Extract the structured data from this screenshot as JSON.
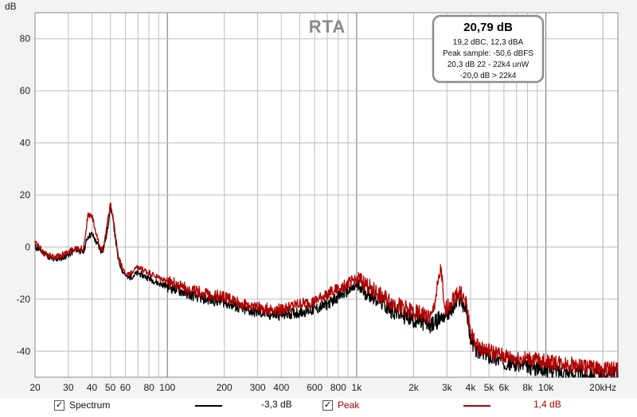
{
  "chart_data": {
    "type": "line",
    "title": "RTA",
    "y_unit": "dB",
    "xscale": "log",
    "xlim": [
      20,
      24000
    ],
    "ylim": [
      -50,
      90
    ],
    "x_ticks": [
      20,
      30,
      40,
      50,
      60,
      80,
      100,
      200,
      300,
      400,
      600,
      800,
      1000,
      2000,
      3000,
      4000,
      5000,
      6000,
      8000,
      10000,
      20000
    ],
    "x_tick_labels": [
      "20",
      "30",
      "40",
      "50",
      "60",
      "80",
      "100",
      "200",
      "300",
      "400",
      "600",
      "800",
      "1k",
      "2k",
      "3k",
      "4k",
      "5k",
      "6k",
      "8k",
      "10k",
      "20kHz"
    ],
    "y_ticks": [
      80,
      60,
      40,
      20,
      0,
      -20,
      -40
    ],
    "y_tick_labels": [
      "80",
      "60",
      "40",
      "20",
      "0",
      "-20",
      "-40"
    ],
    "grid": true,
    "series": [
      {
        "name": "Spectrum",
        "color": "#000000",
        "level": "-3,3 dB",
        "points": [
          [
            20,
            0
          ],
          [
            22,
            -2
          ],
          [
            25,
            -5
          ],
          [
            28,
            -4
          ],
          [
            30,
            -3
          ],
          [
            33,
            -1
          ],
          [
            36,
            -2
          ],
          [
            38,
            4
          ],
          [
            40,
            5
          ],
          [
            42,
            2
          ],
          [
            45,
            -2
          ],
          [
            48,
            5
          ],
          [
            50,
            16
          ],
          [
            52,
            9
          ],
          [
            55,
            -5
          ],
          [
            58,
            -9
          ],
          [
            62,
            -12
          ],
          [
            70,
            -10
          ],
          [
            80,
            -12
          ],
          [
            90,
            -14
          ],
          [
            100,
            -15
          ],
          [
            130,
            -18
          ],
          [
            160,
            -20
          ],
          [
            200,
            -21
          ],
          [
            250,
            -24
          ],
          [
            300,
            -25
          ],
          [
            350,
            -26
          ],
          [
            400,
            -26
          ],
          [
            500,
            -25
          ],
          [
            600,
            -24
          ],
          [
            700,
            -22
          ],
          [
            800,
            -19
          ],
          [
            900,
            -17
          ],
          [
            1000,
            -15
          ],
          [
            1100,
            -17
          ],
          [
            1300,
            -20
          ],
          [
            1500,
            -24
          ],
          [
            2000,
            -28
          ],
          [
            2500,
            -30
          ],
          [
            2800,
            -27
          ],
          [
            3200,
            -24
          ],
          [
            3500,
            -20
          ],
          [
            3800,
            -24
          ],
          [
            4000,
            -35
          ],
          [
            4300,
            -40
          ],
          [
            5000,
            -42
          ],
          [
            6000,
            -44
          ],
          [
            7000,
            -45
          ],
          [
            8000,
            -46
          ],
          [
            10000,
            -47
          ],
          [
            13000,
            -48
          ],
          [
            16000,
            -49
          ],
          [
            20000,
            -49
          ],
          [
            24000,
            -49
          ]
        ]
      },
      {
        "name": "Peak",
        "color": "#b00000",
        "level": "1,4 dB",
        "points": [
          [
            20,
            2
          ],
          [
            22,
            -2
          ],
          [
            25,
            -4
          ],
          [
            28,
            -3
          ],
          [
            30,
            -2
          ],
          [
            33,
            0
          ],
          [
            36,
            -1
          ],
          [
            38,
            12
          ],
          [
            40,
            12
          ],
          [
            42,
            5
          ],
          [
            44,
            0
          ],
          [
            46,
            -1
          ],
          [
            48,
            8
          ],
          [
            50,
            17
          ],
          [
            52,
            10
          ],
          [
            55,
            -4
          ],
          [
            58,
            -8
          ],
          [
            62,
            -11
          ],
          [
            70,
            -8
          ],
          [
            80,
            -10
          ],
          [
            90,
            -12
          ],
          [
            100,
            -13
          ],
          [
            130,
            -16
          ],
          [
            160,
            -18
          ],
          [
            200,
            -19
          ],
          [
            250,
            -22
          ],
          [
            300,
            -23
          ],
          [
            350,
            -24
          ],
          [
            400,
            -24
          ],
          [
            500,
            -22
          ],
          [
            600,
            -21
          ],
          [
            700,
            -18
          ],
          [
            800,
            -16
          ],
          [
            900,
            -14
          ],
          [
            1000,
            -12
          ],
          [
            1100,
            -14
          ],
          [
            1300,
            -18
          ],
          [
            1500,
            -21
          ],
          [
            2000,
            -25
          ],
          [
            2500,
            -27
          ],
          [
            2800,
            -8
          ],
          [
            2900,
            -25
          ],
          [
            3200,
            -20
          ],
          [
            3500,
            -17
          ],
          [
            3800,
            -22
          ],
          [
            4000,
            -33
          ],
          [
            4300,
            -38
          ],
          [
            5000,
            -40
          ],
          [
            6000,
            -42
          ],
          [
            7000,
            -43
          ],
          [
            8000,
            -43
          ],
          [
            10000,
            -44
          ],
          [
            13000,
            -45
          ],
          [
            16000,
            -46
          ],
          [
            20000,
            -47
          ],
          [
            24000,
            -47
          ]
        ]
      }
    ]
  },
  "infobox": {
    "main": "20,79 dB",
    "lines": [
      "19,2 dBC, 12,3 dBA",
      "Peak sample: -50,6 dBFS",
      "20,3 dB 22 - 22k4 unW",
      "-20,0 dB > 22k4"
    ]
  },
  "legend": {
    "spectrum_label": "Spectrum",
    "spectrum_value": "-3,3 dB",
    "peak_label": "Peak",
    "peak_value": "1,4 dB",
    "check_glyph": "✓"
  },
  "colors": {
    "spectrum": "#000000",
    "peak": "#b00000",
    "plot_bg": "#ffffff",
    "grid": "#bdbdbd",
    "panel_bg": "#f3f3f3"
  }
}
